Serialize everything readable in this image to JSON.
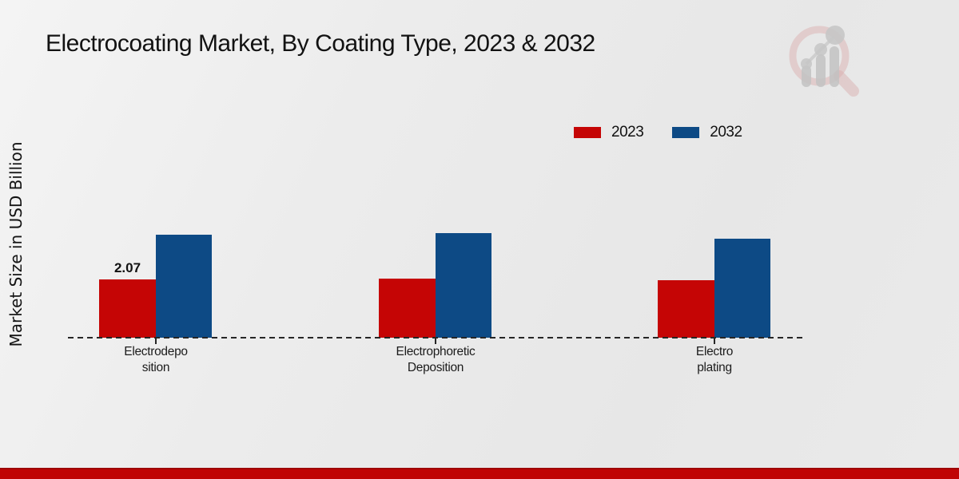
{
  "title": "Electrocoating Market, By Coating Type, 2023 & 2032",
  "y_axis_label": "Market Size in USD Billion",
  "legend": {
    "items": [
      {
        "label": "2023",
        "color": "#c50505"
      },
      {
        "label": "2032",
        "color": "#0d4a85"
      }
    ]
  },
  "chart_data": {
    "type": "bar",
    "title": "Electrocoating Market, By Coating Type, 2023 & 2032",
    "xlabel": "",
    "ylabel": "Market Size in USD Billion",
    "ylim": [
      0,
      4.5
    ],
    "grid": false,
    "legend_position": "top-right",
    "baseline_style": "dashed",
    "categories": [
      "Electrodeposition",
      "Electrophoretic Deposition",
      "Electroplating"
    ],
    "category_label_lines": [
      [
        "Electrodepo",
        "sition"
      ],
      [
        "Electrophoretic",
        "Deposition"
      ],
      [
        "Electro",
        "plating"
      ]
    ],
    "series": [
      {
        "name": "2023",
        "color": "#c50505",
        "values": [
          2.07,
          2.1,
          2.04
        ],
        "data_labels": [
          "2.07",
          "",
          ""
        ]
      },
      {
        "name": "2032",
        "color": "#0d4a85",
        "values": [
          3.65,
          3.71,
          3.52
        ],
        "data_labels": [
          "",
          "",
          ""
        ]
      }
    ]
  },
  "watermark": {
    "name": "market-research-magnifier-logo"
  },
  "footer": {
    "color": "#c00404"
  }
}
